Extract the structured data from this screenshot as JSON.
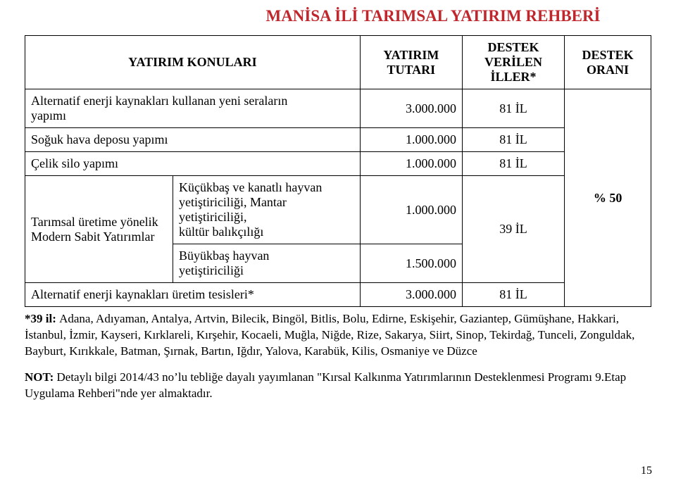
{
  "page": {
    "title": "MANİSA İLİ TARIMSAL YATIRIM REHBERİ",
    "page_number": "15",
    "colors": {
      "title": "#c0272d",
      "text": "#000000",
      "border": "#000000",
      "background": "#ffffff"
    }
  },
  "table": {
    "headers": {
      "col1": "YATIRIM KONULARI",
      "col2_line1": "YATIRIM",
      "col2_line2": "TUTARI",
      "col3_line1": "DESTEK",
      "col3_line2": "VERİLEN",
      "col3_line3": "İLLER*",
      "col4_line1": "DESTEK",
      "col4_line2": "ORANI"
    },
    "rows": {
      "r1": {
        "desc_line1": "Alternatif enerji kaynakları kullanan yeni seraların",
        "desc_line2": "yapımı",
        "amount": "3.000.000",
        "provinces": "81 İL"
      },
      "r2": {
        "desc": "Soğuk hava deposu yapımı",
        "amount": "1.000.000",
        "provinces": "81 İL"
      },
      "r3": {
        "desc": "Çelik silo yapımı",
        "amount": "1.000.000",
        "provinces": "81 İL"
      },
      "r4": {
        "group_line1": "Tarımsal üretime yönelik",
        "group_line2": "Modern Sabit Yatırımlar",
        "sub1_line1": "Küçükbaş ve kanatlı hayvan",
        "sub1_line2": "yetiştiriciliği, Mantar",
        "sub1_line3": "yetiştiriciliği,",
        "sub1_line4": "kültür balıkçılığı",
        "sub1_amount": "1.000.000",
        "sub2_line1": "Büyükbaş hayvan",
        "sub2_line2": "yetiştiriciliği",
        "sub2_amount": "1.500.000",
        "provinces": "39 İL"
      },
      "r5": {
        "desc": "Alternatif enerji kaynakları üretim tesisleri*",
        "amount": "3.000.000",
        "provinces": "81 İL"
      },
      "rate": "% 50"
    }
  },
  "footnote": {
    "lead": "*39 il: ",
    "body": "Adana, Adıyaman, Antalya, Artvin, Bilecik, Bingöl, Bitlis, Bolu, Edirne, Eskişehir, Gaziantep, Gümüşhane, Hakkari, İstanbul, İzmir, Kayseri, Kırklareli, Kırşehir, Kocaeli, Muğla, Niğde, Rize, Sakarya, Siirt, Sinop, Tekirdağ, Tunceli, Zonguldak, Bayburt, Kırıkkale, Batman, Şırnak, Bartın, Iğdır, Yalova, Karabük, Kilis, Osmaniye ve Düzce"
  },
  "note": {
    "lead": "NOT: ",
    "body": "Detaylı bilgi 2014/43 no’lu tebliğe dayalı yayımlanan \"Kırsal Kalkınma Yatırımlarının Desteklenmesi Programı 9.Etap Uygulama Rehberi\"nde yer almaktadır."
  }
}
